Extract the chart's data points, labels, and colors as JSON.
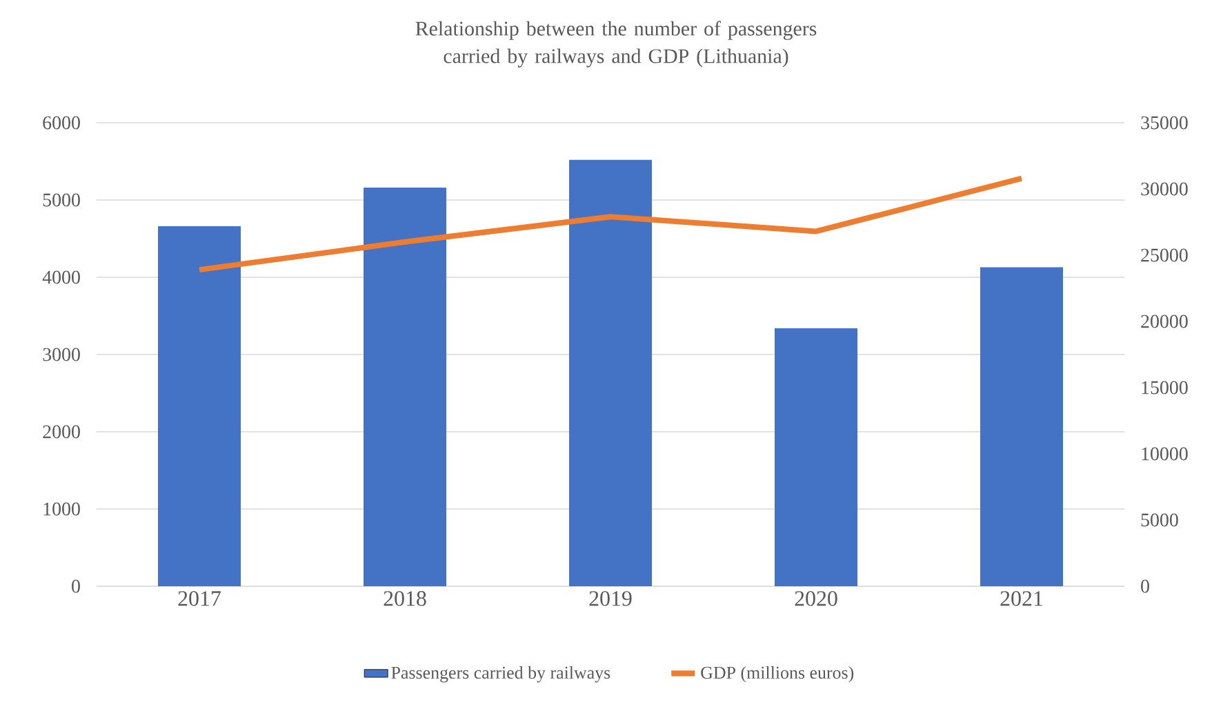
{
  "chart_data": {
    "type": "bar",
    "title": "Relationship between the number of passengers carried by railways and GDP (Lithuania)",
    "categories": [
      "2017",
      "2018",
      "2019",
      "2020",
      "2021"
    ],
    "series": [
      {
        "name": "Passengers carried by railways",
        "color": "#4472c4",
        "values": [
          4660,
          5160,
          5520,
          3340,
          4130
        ]
      },
      {
        "name": "GDP (millions euros)",
        "type": "line",
        "axis": "y2",
        "color": "#ed7d31",
        "values": [
          23900,
          26000,
          27900,
          26800,
          30800
        ]
      }
    ],
    "ylim": [
      0,
      6000
    ],
    "yticks": [
      0,
      1000,
      2000,
      3000,
      4000,
      5000,
      6000
    ],
    "y2lim": [
      0,
      35000
    ],
    "y2ticks": [
      0,
      5000,
      10000,
      15000,
      20000,
      25000,
      30000,
      35000
    ],
    "grid": "y",
    "legend": "bottom",
    "marker": "none"
  }
}
